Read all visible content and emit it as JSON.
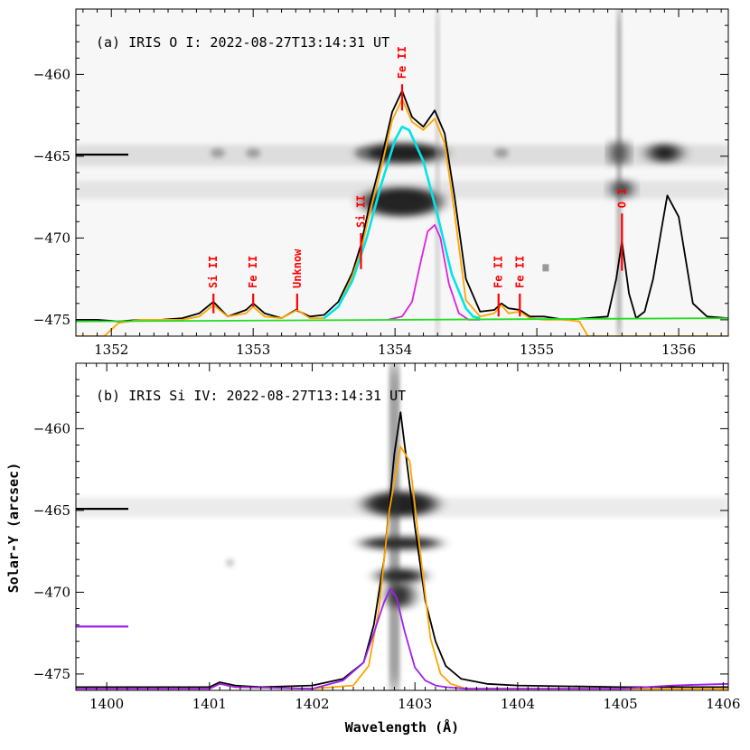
{
  "xlabel": "Wavelength (Å)",
  "ylabel": "Solar-Y (arcsec)",
  "chart_data": [
    {
      "type": "line",
      "panel": "a",
      "title": "(a) IRIS O I: 2022-08-27T13:14:31 UT",
      "xlim": [
        1351.75,
        1356.35
      ],
      "ylim": [
        -476,
        -456
      ],
      "xticks": [
        1352,
        1353,
        1354,
        1355,
        1356
      ],
      "yticks": [
        -475,
        -470,
        -465,
        -460
      ],
      "background": "grayscale slit-jaw spectral image (dark = intense emission)",
      "markers": [
        {
          "y": -464.9,
          "color": "#000000"
        }
      ],
      "line_labels": [
        {
          "text": "Si II",
          "x": 1352.72,
          "tick_y": [
            -474.6,
            -473.4
          ],
          "color": "#ff0000"
        },
        {
          "text": "Fe II",
          "x": 1353.0,
          "tick_y": [
            -474.2,
            -473.4
          ],
          "color": "#ff0000"
        },
        {
          "text": "Unknow",
          "x": 1353.31,
          "tick_y": [
            -474.4,
            -473.4
          ],
          "color": "#ff0000"
        },
        {
          "text": "Si II",
          "x": 1353.76,
          "tick_y": [
            -471.9,
            -469.7
          ],
          "color": "#ff0000"
        },
        {
          "text": "Fe II",
          "x": 1354.05,
          "tick_y": [
            -462.2,
            -460.6
          ],
          "color": "#ff0000"
        },
        {
          "text": "Fe II",
          "x": 1354.73,
          "tick_y": [
            -474.8,
            -473.4
          ],
          "color": "#ff0000"
        },
        {
          "text": "Fe II",
          "x": 1354.88,
          "tick_y": [
            -474.8,
            -473.4
          ],
          "color": "#ff0000"
        },
        {
          "text": "O I",
          "x": 1355.6,
          "tick_y": [
            -472,
            -468.5
          ],
          "color": "#ff0000"
        }
      ],
      "series": [
        {
          "color": "#000000",
          "x": [
            1351.75,
            1351.9,
            1352.05,
            1352.2,
            1352.35,
            1352.5,
            1352.62,
            1352.72,
            1352.82,
            1352.95,
            1353.0,
            1353.08,
            1353.2,
            1353.3,
            1353.4,
            1353.5,
            1353.6,
            1353.7,
            1353.76,
            1353.82,
            1353.9,
            1353.98,
            1354.05,
            1354.12,
            1354.2,
            1354.28,
            1354.35,
            1354.42,
            1354.5,
            1354.6,
            1354.7,
            1354.75,
            1354.8,
            1354.88,
            1354.95,
            1355.05,
            1355.2,
            1355.35,
            1355.5,
            1355.56,
            1355.6,
            1355.65,
            1355.7,
            1355.76,
            1355.82,
            1355.88,
            1355.92,
            1356.0,
            1356.1,
            1356.2,
            1356.35
          ],
          "y": [
            -475.0,
            -475.0,
            -475.1,
            -475.0,
            -475.0,
            -474.9,
            -474.6,
            -473.9,
            -474.8,
            -474.4,
            -474.0,
            -474.6,
            -474.9,
            -474.4,
            -474.8,
            -474.7,
            -473.9,
            -472.1,
            -470.4,
            -468.0,
            -465.3,
            -462.3,
            -461.0,
            -462.6,
            -463.2,
            -462.2,
            -463.6,
            -467.5,
            -472.5,
            -474.5,
            -474.4,
            -474.0,
            -474.3,
            -474.4,
            -474.8,
            -474.8,
            -475.0,
            -474.9,
            -474.8,
            -472.5,
            -470.2,
            -473.4,
            -474.9,
            -474.5,
            -472.5,
            -469.4,
            -467.4,
            -468.7,
            -474.0,
            -474.8,
            -474.9
          ]
        },
        {
          "color": "#ffa500",
          "x": [
            1351.75,
            1351.95,
            1352.05,
            1352.2,
            1352.5,
            1352.62,
            1352.72,
            1352.82,
            1352.95,
            1353.0,
            1353.08,
            1353.2,
            1353.31,
            1353.4,
            1353.5,
            1353.6,
            1353.7,
            1353.76,
            1353.82,
            1353.9,
            1353.98,
            1354.05,
            1354.12,
            1354.2,
            1354.28,
            1354.35,
            1354.42,
            1354.5,
            1354.6,
            1354.7,
            1354.75,
            1354.8,
            1354.88,
            1354.95,
            1355.05,
            1355.2,
            1355.3,
            1355.36,
            1355.45,
            1356.35
          ],
          "y": [
            -476.0,
            -476.0,
            -475.2,
            -475.0,
            -475.0,
            -474.8,
            -474.1,
            -474.8,
            -474.6,
            -474.2,
            -474.8,
            -474.9,
            -474.4,
            -474.9,
            -474.9,
            -474.2,
            -472.3,
            -470.8,
            -468.5,
            -465.8,
            -462.8,
            -461.5,
            -462.9,
            -463.4,
            -462.7,
            -464.2,
            -468.5,
            -473.8,
            -474.8,
            -474.6,
            -474.1,
            -474.6,
            -474.5,
            -474.9,
            -475.0,
            -475.0,
            -475.1,
            -476.0,
            -476.0,
            -476.0
          ]
        },
        {
          "color": "#00e5e5",
          "x": [
            1353.5,
            1353.6,
            1353.7,
            1353.8,
            1353.9,
            1354.0,
            1354.05,
            1354.1,
            1354.2,
            1354.3,
            1354.4,
            1354.5,
            1354.55,
            1354.6
          ],
          "y": [
            -474.9,
            -474.2,
            -472.6,
            -470.0,
            -466.8,
            -464.0,
            -463.2,
            -463.4,
            -465.3,
            -468.6,
            -472.2,
            -474.3,
            -474.8,
            -474.9
          ]
        },
        {
          "color": "#e020e0",
          "x": [
            1353.95,
            1354.05,
            1354.12,
            1354.18,
            1354.23,
            1354.28,
            1354.32,
            1354.38,
            1354.45,
            1354.52,
            1354.6
          ],
          "y": [
            -475.0,
            -474.8,
            -473.9,
            -471.5,
            -469.6,
            -469.2,
            -470.0,
            -472.8,
            -474.6,
            -475.0,
            -475.0
          ]
        },
        {
          "color": "#22dd22",
          "x": [
            1351.75,
            1356.35
          ],
          "y": [
            -475.1,
            -474.9
          ]
        }
      ]
    },
    {
      "type": "line",
      "panel": "b",
      "title": "(b) IRIS Si IV: 2022-08-27T13:14:31 UT",
      "xlim": [
        1399.7,
        1406.05
      ],
      "ylim": [
        -476,
        -456
      ],
      "xticks": [
        1400,
        1401,
        1402,
        1403,
        1404,
        1405,
        1406
      ],
      "yticks": [
        -475,
        -470,
        -465,
        -460
      ],
      "background": "grayscale slit-jaw spectral image (dark = intense emission)",
      "markers": [
        {
          "y": -464.9,
          "color": "#000000"
        },
        {
          "y": -472.1,
          "color": "#a020f0"
        }
      ],
      "series": [
        {
          "color": "#000000",
          "x": [
            1399.7,
            1400.5,
            1401.0,
            1401.1,
            1401.25,
            1401.5,
            1402.0,
            1402.3,
            1402.5,
            1402.6,
            1402.7,
            1402.8,
            1402.86,
            1402.9,
            1403.0,
            1403.1,
            1403.2,
            1403.3,
            1403.45,
            1403.7,
            1404.0,
            1405.0,
            1405.5,
            1405.8,
            1406.05
          ],
          "y": [
            -475.8,
            -475.8,
            -475.8,
            -475.5,
            -475.7,
            -475.8,
            -475.7,
            -475.3,
            -474.3,
            -472.0,
            -468.0,
            -461.5,
            -459.0,
            -461.0,
            -466.0,
            -470.5,
            -473.0,
            -474.5,
            -475.3,
            -475.6,
            -475.7,
            -475.8,
            -475.8,
            -475.8,
            -475.8
          ]
        },
        {
          "color": "#ffa500",
          "x": [
            1399.7,
            1401.0,
            1401.1,
            1401.25,
            1402.0,
            1402.4,
            1402.55,
            1402.65,
            1402.75,
            1402.86,
            1402.95,
            1403.05,
            1403.15,
            1403.25,
            1403.35,
            1403.5,
            1404.0,
            1405.5,
            1406.05
          ],
          "y": [
            -475.9,
            -475.9,
            -475.6,
            -475.8,
            -475.9,
            -475.7,
            -474.5,
            -471.0,
            -465.0,
            -461.1,
            -462.0,
            -467.5,
            -472.8,
            -475.0,
            -475.6,
            -475.9,
            -475.9,
            -475.9,
            -475.9
          ]
        },
        {
          "color": "#a020f0",
          "x": [
            1399.7,
            1401.0,
            1401.1,
            1401.25,
            1402.0,
            1402.3,
            1402.5,
            1402.6,
            1402.7,
            1402.76,
            1402.82,
            1402.9,
            1403.0,
            1403.1,
            1403.2,
            1403.3,
            1403.5,
            1404.0,
            1405.0,
            1405.5,
            1406.05
          ],
          "y": [
            -475.9,
            -475.9,
            -475.6,
            -475.8,
            -475.9,
            -475.4,
            -474.3,
            -472.5,
            -470.6,
            -469.8,
            -470.3,
            -472.4,
            -474.6,
            -475.4,
            -475.7,
            -475.8,
            -475.9,
            -475.9,
            -475.9,
            -475.7,
            -475.6
          ]
        }
      ]
    }
  ]
}
